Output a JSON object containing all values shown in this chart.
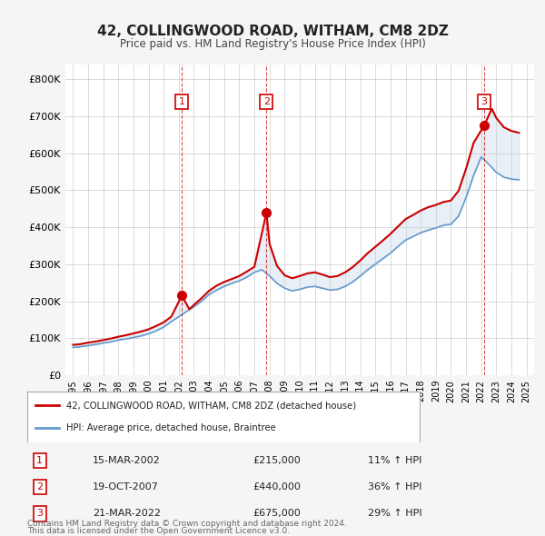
{
  "title": "42, COLLINGWOOD ROAD, WITHAM, CM8 2DZ",
  "subtitle": "Price paid vs. HM Land Registry's House Price Index (HPI)",
  "hpi_label": "HPI: Average price, detached house, Braintree",
  "price_label": "42, COLLINGWOOD ROAD, WITHAM, CM8 2DZ (detached house)",
  "footer1": "Contains HM Land Registry data © Crown copyright and database right 2024.",
  "footer2": "This data is licensed under the Open Government Licence v3.0.",
  "transactions": [
    {
      "num": 1,
      "date": "15-MAR-2002",
      "price": 215000,
      "hpi_pct": "11% ↑ HPI",
      "year": 2002.2
    },
    {
      "num": 2,
      "date": "19-OCT-2007",
      "price": 440000,
      "hpi_pct": "36% ↑ HPI",
      "year": 2007.8
    },
    {
      "num": 3,
      "date": "21-MAR-2022",
      "price": 675000,
      "hpi_pct": "29% ↑ HPI",
      "year": 2022.2
    }
  ],
  "years_hpi": [
    1995,
    1995.5,
    1996,
    1996.5,
    1997,
    1997.5,
    1998,
    1998.5,
    1999,
    1999.5,
    2000,
    2000.5,
    2001,
    2001.5,
    2002,
    2002.5,
    2003,
    2003.5,
    2004,
    2004.5,
    2005,
    2005.5,
    2006,
    2006.5,
    2007,
    2007.5,
    2008,
    2008.5,
    2009,
    2009.5,
    2010,
    2010.5,
    2011,
    2011.5,
    2012,
    2012.5,
    2013,
    2013.5,
    2014,
    2014.5,
    2015,
    2015.5,
    2016,
    2016.5,
    2017,
    2017.5,
    2018,
    2018.5,
    2019,
    2019.5,
    2020,
    2020.5,
    2021,
    2021.5,
    2022,
    2022.5,
    2023,
    2023.5,
    2024,
    2024.5
  ],
  "hpi_values": [
    75000,
    77000,
    80000,
    83000,
    87000,
    90000,
    95000,
    98000,
    102000,
    106000,
    112000,
    120000,
    130000,
    145000,
    158000,
    172000,
    185000,
    200000,
    218000,
    230000,
    240000,
    248000,
    255000,
    265000,
    278000,
    285000,
    268000,
    248000,
    235000,
    228000,
    232000,
    238000,
    240000,
    235000,
    230000,
    232000,
    240000,
    252000,
    268000,
    285000,
    300000,
    315000,
    330000,
    348000,
    365000,
    375000,
    385000,
    392000,
    398000,
    405000,
    408000,
    430000,
    480000,
    540000,
    590000,
    570000,
    548000,
    535000,
    530000,
    528000
  ],
  "price_years": [
    1995,
    1995.5,
    1996,
    1996.5,
    1997,
    1997.5,
    1998,
    1998.5,
    1999,
    1999.5,
    2000,
    2000.5,
    2001,
    2001.5,
    2002.2,
    2002.7,
    2003,
    2003.5,
    2004,
    2004.5,
    2005,
    2005.5,
    2006,
    2006.5,
    2007,
    2007.8,
    2008,
    2008.5,
    2009,
    2009.5,
    2010,
    2010.5,
    2011,
    2011.5,
    2012,
    2012.5,
    2013,
    2013.5,
    2014,
    2014.5,
    2015,
    2015.5,
    2016,
    2016.5,
    2017,
    2017.5,
    2018,
    2018.5,
    2019,
    2019.5,
    2020,
    2020.5,
    2021,
    2021.5,
    2022.2,
    2022.7,
    2023,
    2023.5,
    2024,
    2024.5
  ],
  "price_values": [
    82000,
    84000,
    88000,
    91000,
    95000,
    99000,
    104000,
    108000,
    113000,
    118000,
    124000,
    133000,
    143000,
    158000,
    215000,
    178000,
    190000,
    208000,
    228000,
    242000,
    252000,
    260000,
    268000,
    280000,
    293000,
    440000,
    355000,
    295000,
    270000,
    262000,
    268000,
    275000,
    278000,
    272000,
    265000,
    268000,
    278000,
    292000,
    310000,
    330000,
    347000,
    364000,
    382000,
    402000,
    422000,
    433000,
    445000,
    454000,
    460000,
    468000,
    472000,
    498000,
    558000,
    628000,
    675000,
    720000,
    695000,
    670000,
    660000,
    655000
  ],
  "xlim": [
    1994.5,
    2025.5
  ],
  "ylim": [
    0,
    840000
  ],
  "yticks": [
    0,
    100000,
    200000,
    300000,
    400000,
    500000,
    600000,
    700000,
    800000
  ],
  "ytick_labels": [
    "£0",
    "£100K",
    "£200K",
    "£300K",
    "£400K",
    "£500K",
    "£600K",
    "£700K",
    "£800K"
  ],
  "xticks": [
    1995,
    1996,
    1997,
    1998,
    1999,
    2000,
    2001,
    2002,
    2003,
    2004,
    2005,
    2006,
    2007,
    2008,
    2009,
    2010,
    2011,
    2012,
    2013,
    2014,
    2015,
    2016,
    2017,
    2018,
    2019,
    2020,
    2021,
    2022,
    2023,
    2024,
    2025
  ],
  "price_color": "#cc0000",
  "hpi_color": "#6699cc",
  "transaction_color": "#cc0000",
  "bg_color": "#f5f5f5",
  "plot_bg_color": "#ffffff",
  "grid_color": "#cccccc"
}
